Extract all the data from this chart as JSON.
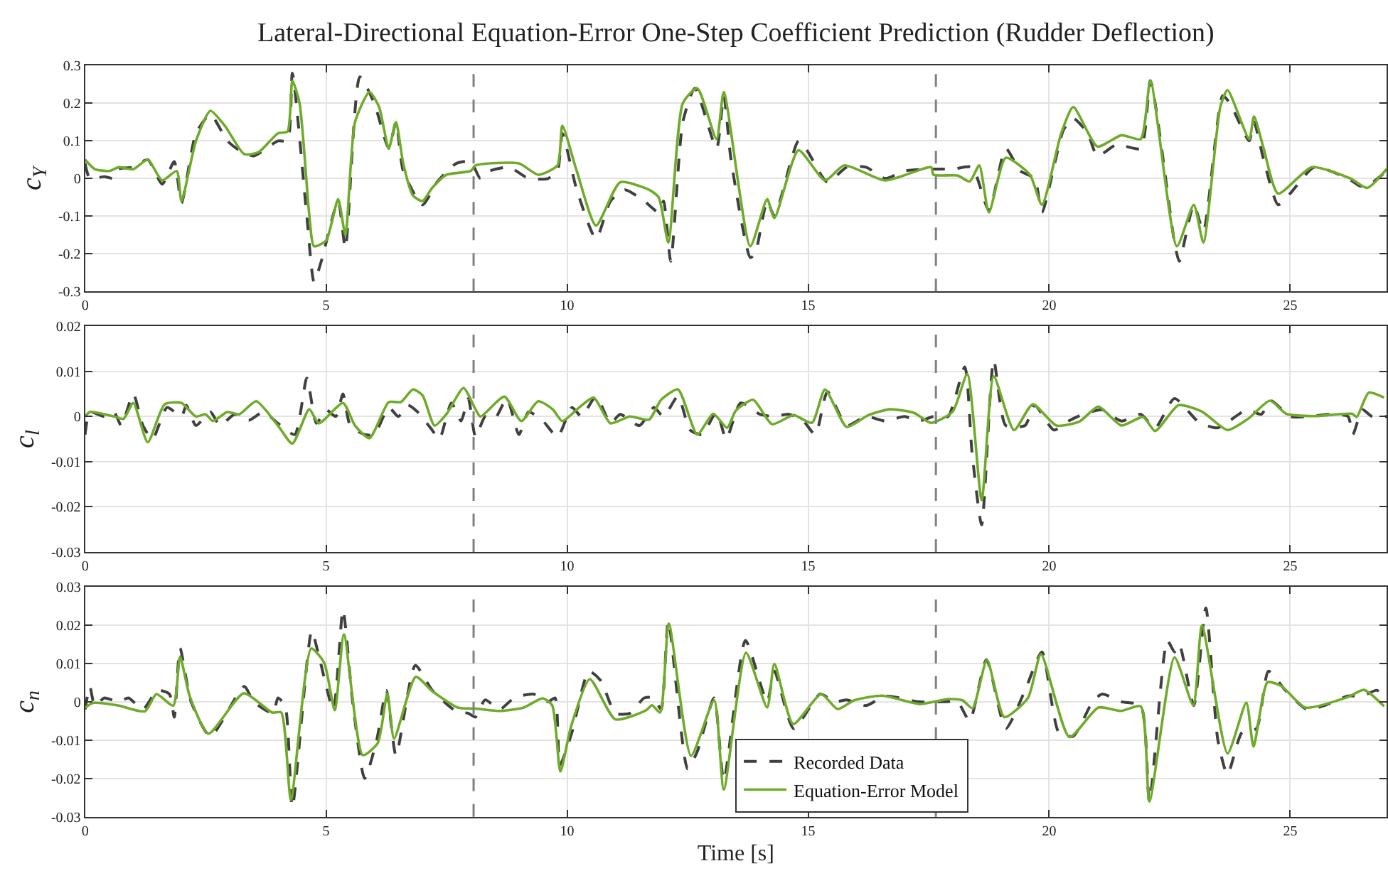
{
  "chart_data": [
    {
      "type": "line",
      "title": "Lateral-Directional Equation-Error One-Step Coefficient Prediction (Rudder Deflection)",
      "ylabel": "c$_{Y}$",
      "xlim": [
        0,
        27
      ],
      "xticks": [
        0,
        5,
        10,
        15,
        20,
        25
      ],
      "ylim": [
        -0.3,
        0.3
      ],
      "yticks": [
        -0.3,
        -0.2,
        -0.1,
        0,
        0.1,
        0.2,
        0.3
      ],
      "grid": true,
      "legend": false,
      "ref_lines": [
        {
          "axis": "x",
          "value": 8.06,
          "color": "#808080",
          "line_style": "dashed"
        },
        {
          "axis": "x",
          "value": 17.65,
          "color": "#808080",
          "line_style": "dashed"
        }
      ],
      "series": [
        {
          "color": "#404040",
          "line_style": "dashed",
          "x": [
            0,
            0.1,
            0.4,
            0.6,
            0.7,
            1.0,
            1.3,
            1.6,
            1.85,
            2.0,
            2.3,
            2.6,
            2.95,
            3.2,
            3.5,
            4.0,
            4.2,
            4.3,
            4.6,
            4.75,
            4.9,
            5.25,
            5.4,
            5.7,
            6.0,
            6.3,
            6.45,
            6.6,
            7.0,
            7.3,
            7.7,
            8.0,
            8.2,
            8.4,
            8.8,
            9.2,
            9.6,
            9.8,
            9.9,
            10.2,
            10.6,
            10.9,
            11.2,
            11.6,
            11.9,
            12.0,
            12.15,
            12.4,
            12.65,
            13.1,
            13.25,
            13.4,
            13.8,
            13.9,
            14.15,
            14.3,
            14.8,
            15.0,
            15.4,
            15.8,
            16.2,
            16.6,
            17.0,
            17.6,
            18.0,
            18.4,
            18.75,
            19.1,
            19.4,
            19.7,
            19.85,
            20.3,
            20.5,
            20.8,
            21.0,
            21.4,
            21.9,
            22.1,
            22.6,
            22.7,
            23.0,
            23.2,
            23.6,
            23.75,
            24.15,
            24.25,
            24.45,
            24.75,
            25.0,
            25.5,
            26.2,
            26.45,
            26.6,
            27.0
          ],
          "values": [
            0.04,
            0.0,
            0.005,
            0.0,
            0.025,
            0.03,
            0.05,
            -0.015,
            0.045,
            -0.065,
            0.12,
            0.17,
            0.1,
            0.075,
            0.06,
            0.1,
            0.1,
            0.28,
            -0.1,
            -0.275,
            -0.22,
            -0.06,
            -0.185,
            0.27,
            0.2,
            0.08,
            0.15,
            0.02,
            -0.07,
            -0.01,
            0.04,
            0.045,
            0.0,
            0.02,
            0.03,
            0.0,
            0.0,
            0.02,
            0.12,
            -0.03,
            -0.16,
            -0.06,
            -0.03,
            -0.06,
            -0.09,
            -0.06,
            -0.22,
            0.15,
            0.24,
            0.08,
            0.22,
            0.05,
            -0.21,
            -0.2,
            -0.06,
            -0.1,
            0.1,
            0.07,
            -0.01,
            0.03,
            0.03,
            0.0,
            0.02,
            0.025,
            0.025,
            0.03,
            -0.085,
            0.08,
            0.02,
            0.0,
            -0.09,
            0.13,
            0.16,
            0.12,
            0.06,
            0.09,
            0.08,
            0.26,
            -0.17,
            -0.22,
            -0.07,
            -0.14,
            0.22,
            0.2,
            0.1,
            0.15,
            0.05,
            -0.07,
            -0.04,
            0.03,
            0.0,
            -0.02,
            -0.02,
            0.02
          ]
        },
        {
          "color": "#6fab2a",
          "line_style": "solid",
          "x": [
            0,
            0.2,
            0.5,
            0.7,
            1.0,
            1.3,
            1.6,
            1.9,
            2.0,
            2.3,
            2.6,
            2.9,
            3.3,
            3.6,
            4.0,
            4.2,
            4.3,
            4.45,
            4.65,
            4.75,
            5.0,
            5.25,
            5.4,
            5.6,
            5.9,
            6.1,
            6.3,
            6.45,
            6.6,
            6.8,
            7.0,
            7.2,
            7.5,
            8.0,
            8.1,
            9.0,
            9.4,
            9.8,
            9.9,
            10.2,
            10.6,
            11.1,
            11.7,
            11.9,
            12.1,
            12.4,
            12.7,
            13.1,
            13.25,
            13.8,
            14.15,
            14.3,
            14.8,
            15.35,
            15.75,
            16.6,
            17.55,
            17.6,
            18.1,
            18.35,
            18.55,
            18.75,
            19.1,
            19.6,
            19.85,
            20.25,
            20.5,
            21.0,
            21.5,
            21.9,
            22.1,
            22.65,
            23.0,
            23.2,
            23.55,
            23.7,
            24.15,
            24.25,
            24.45,
            24.75,
            25.45,
            26.25,
            26.6,
            27.0
          ],
          "values": [
            0.05,
            0.025,
            0.02,
            0.03,
            0.025,
            0.05,
            -0.005,
            0.02,
            -0.06,
            0.1,
            0.18,
            0.14,
            0.065,
            0.07,
            0.12,
            0.125,
            0.26,
            0.2,
            -0.095,
            -0.18,
            -0.165,
            -0.055,
            -0.15,
            0.15,
            0.23,
            0.19,
            0.08,
            0.15,
            0.04,
            -0.045,
            -0.06,
            -0.025,
            0.01,
            0.02,
            0.035,
            0.04,
            0.01,
            0.035,
            0.14,
            0.02,
            -0.125,
            -0.01,
            -0.03,
            -0.05,
            -0.17,
            0.2,
            0.24,
            0.105,
            0.23,
            -0.18,
            -0.055,
            -0.105,
            0.075,
            -0.005,
            0.035,
            -0.005,
            0.03,
            0.01,
            0.008,
            -0.008,
            0.035,
            -0.09,
            0.055,
            0.01,
            -0.07,
            0.12,
            0.19,
            0.085,
            0.115,
            0.105,
            0.26,
            -0.18,
            -0.07,
            -0.17,
            0.19,
            0.235,
            0.105,
            0.165,
            0.08,
            -0.04,
            0.03,
            0.0,
            -0.025,
            0.025
          ]
        }
      ]
    },
    {
      "type": "line",
      "ylabel": "c$_{l}$",
      "xlim": [
        0,
        27
      ],
      "xticks": [
        0,
        5,
        10,
        15,
        20,
        25
      ],
      "ylim": [
        -0.03,
        0.02
      ],
      "yticks": [
        -0.03,
        -0.02,
        -0.01,
        0,
        0.01,
        0.02
      ],
      "grid": true,
      "legend": false,
      "ref_lines": [
        {
          "axis": "x",
          "value": 8.06,
          "color": "#808080",
          "line_style": "dashed"
        },
        {
          "axis": "x",
          "value": 17.65,
          "color": "#808080",
          "line_style": "dashed"
        }
      ],
      "series": [
        {
          "color": "#404040",
          "line_style": "dashed",
          "x": [
            0,
            0.1,
            0.4,
            0.6,
            0.75,
            1.0,
            1.2,
            1.4,
            1.7,
            2.0,
            2.1,
            2.3,
            2.6,
            2.8,
            3.1,
            3.4,
            3.7,
            4.0,
            4.35,
            4.6,
            4.8,
            5.0,
            5.2,
            5.35,
            5.5,
            5.8,
            6.0,
            6.3,
            6.5,
            6.7,
            6.9,
            7.2,
            7.35,
            7.6,
            7.8,
            7.95,
            8.1,
            8.3,
            8.5,
            8.75,
            9.0,
            9.2,
            9.5,
            9.8,
            10.1,
            10.3,
            10.6,
            10.9,
            11.1,
            11.5,
            11.8,
            12.0,
            12.3,
            12.55,
            12.8,
            13.1,
            13.3,
            13.6,
            14.0,
            14.3,
            14.6,
            14.9,
            15.15,
            15.4,
            15.8,
            16.2,
            16.6,
            17.0,
            17.3,
            17.6,
            17.9,
            18.25,
            18.4,
            18.6,
            18.85,
            19.1,
            19.5,
            19.7,
            20.1,
            20.4,
            20.7,
            21.1,
            21.5,
            21.9,
            22.2,
            22.6,
            23.1,
            23.5,
            24.1,
            24.4,
            24.6,
            25.0,
            25.4,
            25.8,
            26.2,
            26.3,
            26.5,
            26.7,
            27.0
          ],
          "values": [
            -0.004,
            0.001,
            0.0,
            0.001,
            -0.002,
            0.005,
            -0.002,
            -0.005,
            0.002,
            0.0,
            0.0025,
            -0.002,
            0.001,
            -0.002,
            0.0005,
            -0.0008,
            0.001,
            -0.0015,
            -0.004,
            0.0085,
            -0.0015,
            0.0015,
            0.0,
            0.005,
            -0.002,
            -0.004,
            -0.004,
            0.002,
            0.0,
            0.0025,
            0.001,
            -0.003,
            -0.005,
            0.003,
            -0.001,
            0.004,
            -0.0045,
            0.0,
            -0.0005,
            0.004,
            -0.004,
            0.001,
            -0.001,
            -0.0045,
            0.002,
            0.0,
            0.0045,
            -0.0015,
            0.0005,
            -0.002,
            0.002,
            0.0,
            0.0045,
            -0.003,
            -0.004,
            0.001,
            -0.005,
            0.003,
            0.0005,
            0.0,
            0.0005,
            -0.001,
            -0.004,
            0.0055,
            -0.002,
            0.0,
            -0.001,
            0.0,
            -0.001,
            0.0,
            0.0,
            0.011,
            -0.008,
            -0.024,
            0.0125,
            -0.002,
            -0.002,
            0.0025,
            -0.003,
            -0.001,
            0.0005,
            0.0015,
            -0.001,
            0.0005,
            -0.0025,
            0.004,
            -0.0012,
            -0.0025,
            0.0015,
            0.0005,
            0.0035,
            0.0,
            0.0,
            0.0005,
            0.0,
            -0.004,
            0.0015,
            0.0,
            0.0
          ]
        },
        {
          "color": "#6fab2a",
          "line_style": "solid",
          "x": [
            0,
            0.1,
            0.6,
            0.8,
            1.0,
            1.3,
            1.65,
            2.0,
            2.3,
            2.5,
            2.65,
            2.95,
            3.2,
            3.55,
            4.0,
            4.3,
            4.65,
            4.85,
            5.35,
            5.6,
            5.9,
            6.3,
            6.55,
            6.8,
            7.0,
            7.25,
            7.5,
            7.85,
            8.1,
            8.2,
            8.7,
            9.05,
            9.4,
            9.7,
            9.9,
            10.25,
            10.55,
            10.9,
            11.3,
            11.7,
            11.95,
            12.3,
            12.7,
            13.03,
            13.32,
            13.5,
            13.86,
            14.25,
            14.7,
            15.08,
            15.35,
            15.8,
            16.25,
            16.7,
            17.2,
            17.55,
            18.0,
            18.3,
            18.6,
            18.85,
            19.27,
            19.66,
            20.15,
            20.63,
            21.02,
            21.5,
            21.95,
            22.2,
            22.68,
            23.17,
            23.7,
            24.14,
            24.58,
            24.92,
            25.5,
            26.29,
            26.38,
            26.63,
            26.95
          ],
          "values": [
            0.0,
            0.001,
            0.0,
            -0.0005,
            0.003,
            -0.0057,
            0.0027,
            0.003,
            0.0,
            0.0005,
            -0.001,
            0.001,
            0.0005,
            0.0034,
            -0.002,
            -0.006,
            0.0016,
            -0.0015,
            0.003,
            -0.002,
            -0.0048,
            0.0032,
            0.0032,
            0.006,
            0.0047,
            -0.002,
            0.0006,
            0.0063,
            0.0016,
            0.0,
            0.0044,
            -0.001,
            0.0034,
            0.0016,
            -0.001,
            0.002,
            0.0042,
            -0.0015,
            0.0,
            -0.0007,
            0.0037,
            0.006,
            -0.004,
            0.0006,
            -0.0025,
            0.0013,
            0.0037,
            -0.0017,
            0.0003,
            -0.0014,
            0.006,
            -0.0023,
            0.0003,
            0.0016,
            0.0008,
            -0.0014,
            0.0011,
            0.0094,
            -0.0185,
            0.0089,
            -0.003,
            0.0027,
            -0.002,
            -0.0011,
            0.0022,
            -0.002,
            -0.0001,
            -0.0032,
            0.0025,
            0.0011,
            -0.003,
            -0.0004,
            0.0035,
            0.0006,
            0.0001,
            0.0006,
            -0.0001,
            0.0053,
            0.0042
          ]
        }
      ]
    },
    {
      "type": "line",
      "xlabel": "Time [s]",
      "ylabel": "c$_{n}$",
      "xlim": [
        0,
        27
      ],
      "xticks": [
        0,
        5,
        10,
        15,
        20,
        25
      ],
      "ylim": [
        -0.03,
        0.03
      ],
      "yticks": [
        -0.03,
        -0.02,
        -0.01,
        0,
        0.01,
        0.02,
        0.03
      ],
      "grid": true,
      "legend": "bottom",
      "ref_lines": [
        {
          "axis": "x",
          "value": 8.06,
          "color": "#808080",
          "line_style": "dashed"
        },
        {
          "axis": "x",
          "value": 17.65,
          "color": "#808080",
          "line_style": "dashed"
        }
      ],
      "series": [
        {
          "name": "Recorded Data",
          "color": "#404040",
          "line_style": "dashed",
          "x": [
            0,
            0.1,
            0.2,
            0.4,
            0.7,
            0.9,
            1.2,
            1.5,
            1.75,
            1.85,
            1.97,
            2.2,
            2.6,
            3.3,
            3.5,
            3.9,
            4.0,
            4.15,
            4.3,
            4.7,
            4.85,
            5.15,
            5.35,
            5.55,
            5.8,
            6.05,
            6.25,
            6.45,
            6.85,
            7.2,
            7.7,
            7.95,
            8.1,
            8.3,
            8.6,
            8.9,
            9.3,
            9.6,
            9.75,
            9.85,
            10.1,
            10.45,
            10.7,
            11.0,
            11.3,
            11.6,
            11.8,
            11.95,
            12.1,
            12.5,
            12.7,
            13.05,
            13.25,
            13.7,
            14.15,
            14.3,
            14.7,
            15.25,
            15.55,
            15.8,
            16.2,
            16.6,
            17.3,
            17.85,
            18.1,
            18.35,
            18.7,
            19.1,
            19.5,
            19.85,
            20.2,
            20.5,
            20.9,
            21.1,
            21.5,
            21.9,
            22.08,
            22.45,
            22.6,
            22.7,
            23.0,
            23.25,
            23.5,
            23.7,
            24.0,
            24.3,
            24.55,
            24.9,
            25.35,
            25.7,
            26.2,
            26.5,
            26.8,
            27.0
          ],
          "values": [
            -0.002,
            0.004,
            -0.001,
            0.001,
            0.0,
            0.001,
            -0.002,
            0.003,
            0.002,
            -0.004,
            0.014,
            0.0,
            -0.009,
            0.004,
            0.0,
            -0.003,
            0.001,
            -0.001,
            -0.0275,
            0.0185,
            0.012,
            -0.002,
            0.024,
            0.0,
            -0.02,
            -0.01,
            0.003,
            -0.014,
            0.0095,
            0.003,
            -0.0025,
            -0.003,
            -0.004,
            0.0005,
            -0.002,
            0.001,
            0.002,
            0.0,
            0.001,
            -0.0165,
            -0.008,
            0.008,
            0.0055,
            -0.003,
            -0.003,
            0.001,
            0.001,
            -0.002,
            0.021,
            -0.0175,
            -0.013,
            0.001,
            -0.0205,
            0.016,
            0.0,
            0.008,
            -0.007,
            0.002,
            0.0,
            0.0005,
            -0.001,
            0.0015,
            0.0,
            0.0,
            0.0,
            -0.005,
            0.011,
            -0.007,
            0.003,
            0.013,
            -0.008,
            -0.009,
            0.0,
            0.002,
            0.0,
            -0.001,
            -0.026,
            0.016,
            0.013,
            0.015,
            -0.001,
            0.0245,
            -0.01,
            -0.019,
            -0.008,
            -0.007,
            0.008,
            0.003,
            -0.002,
            -0.001,
            0.0015,
            0.0015,
            0.003,
            0.0
          ]
        },
        {
          "name": "Equation-Error Model",
          "color": "#6fab2a",
          "line_style": "solid",
          "x": [
            0,
            0.17,
            0.7,
            1.24,
            1.48,
            1.83,
            1.97,
            2.17,
            2.56,
            3.29,
            3.88,
            4.07,
            4.27,
            4.69,
            4.96,
            5.18,
            5.37,
            5.76,
            6.07,
            6.27,
            6.41,
            6.86,
            7.2,
            7.73,
            8.12,
            8.61,
            9.1,
            9.49,
            9.69,
            9.86,
            10.08,
            10.47,
            11.0,
            11.64,
            11.76,
            11.93,
            12.11,
            12.57,
            13.05,
            13.25,
            13.71,
            14.15,
            14.3,
            14.69,
            15.27,
            15.61,
            15.96,
            16.54,
            17.32,
            17.9,
            18.2,
            18.41,
            18.71,
            19.07,
            19.56,
            19.83,
            20.42,
            21.02,
            21.49,
            21.9,
            22.08,
            22.6,
            22.99,
            23.17,
            23.7,
            24.09,
            24.24,
            24.53,
            24.82,
            25.31,
            26.19,
            26.53,
            26.95
          ],
          "values": [
            -0.0015,
            -0.0003,
            -0.001,
            -0.0025,
            0.002,
            -0.001,
            0.0118,
            0.0015,
            -0.0083,
            0.0022,
            -0.0028,
            -0.0028,
            -0.0256,
            0.0139,
            0.0102,
            -0.0022,
            0.0176,
            -0.0139,
            -0.0108,
            0.0022,
            -0.0096,
            0.0065,
            0.0028,
            -0.0015,
            -0.0018,
            -0.0024,
            -0.0015,
            0.0009,
            -0.0009,
            -0.0182,
            -0.0065,
            0.0059,
            -0.0046,
            -0.0022,
            -0.0009,
            -0.0028,
            0.0204,
            -0.0141,
            0.0004,
            -0.0229,
            0.0128,
            -0.0015,
            0.0099,
            -0.0058,
            0.002,
            -0.0019,
            0.0004,
            0.0016,
            -0.0006,
            0.0007,
            0.0004,
            -0.0017,
            0.0109,
            -0.004,
            0.001,
            0.0124,
            -0.0092,
            -0.0015,
            -0.0024,
            -0.0012,
            -0.026,
            0.0116,
            -0.0009,
            0.0199,
            -0.0135,
            -0.0002,
            -0.0117,
            0.0051,
            0.0041,
            -0.0015,
            0.0012,
            0.0031,
            -0.0012
          ]
        }
      ]
    }
  ]
}
